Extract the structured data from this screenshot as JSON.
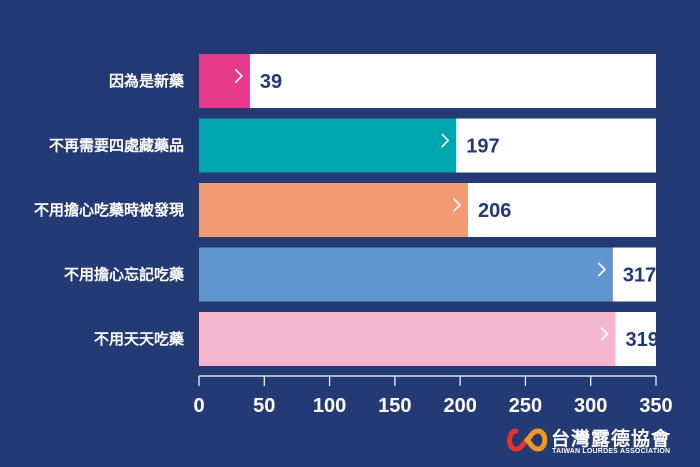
{
  "chart_data": {
    "type": "bar",
    "orientation": "horizontal",
    "categories": [
      "因為是新藥",
      "不再需要四處藏藥品",
      "不用擔心吃藥時被發現",
      "不用擔心忘記吃藥",
      "不用天天吃藥"
    ],
    "values": [
      39,
      197,
      206,
      317,
      319
    ],
    "bar_colors": [
      "#e63a8c",
      "#00a6ad",
      "#f19a73",
      "#6095cf",
      "#f4b5cf"
    ],
    "background_color": "#233a75",
    "track_color": "#ffffff",
    "xlim": [
      0,
      350
    ],
    "xticks": [
      0,
      50,
      100,
      150,
      200,
      250,
      300,
      350
    ],
    "title": "",
    "xlabel": "",
    "ylabel": ""
  },
  "logo": {
    "name_zh": "台灣露德協會",
    "name_en": "TAIWAN LOURDES ASSOCIATION",
    "colors": [
      "#e8332a",
      "#f29a1f"
    ]
  }
}
